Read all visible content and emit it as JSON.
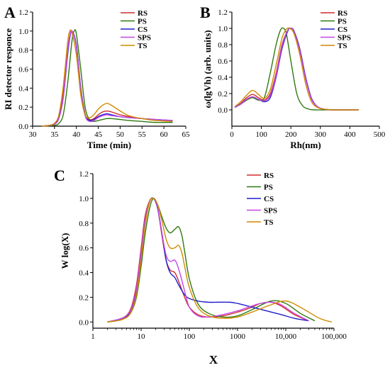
{
  "colors": {
    "RS": "#d12d2d",
    "PS": "#2f7a10",
    "CS": "#1f1fc9",
    "SPS": "#c447e6",
    "TS": "#d18a00"
  },
  "chart_data": [
    {
      "panel": "A",
      "type": "line",
      "xlabel": "Time (min)",
      "ylabel": "RI detector responce",
      "xlim": [
        30,
        65
      ],
      "ylim": [
        0.0,
        1.2
      ],
      "xticks": [
        30,
        35,
        40,
        45,
        50,
        55,
        60,
        65
      ],
      "yticks": [
        0.0,
        0.2,
        0.4,
        0.6,
        0.8,
        1.0,
        1.2
      ],
      "series": [
        {
          "name": "RS",
          "x": [
            32,
            34,
            35,
            36,
            37,
            38,
            38.5,
            39,
            40,
            41,
            42,
            43,
            44,
            45,
            46,
            47,
            48,
            50,
            52,
            55,
            58,
            62
          ],
          "y": [
            0,
            0.01,
            0.03,
            0.1,
            0.35,
            0.8,
            0.95,
            1.0,
            0.85,
            0.4,
            0.13,
            0.07,
            0.08,
            0.12,
            0.15,
            0.16,
            0.15,
            0.12,
            0.1,
            0.08,
            0.07,
            0.05
          ]
        },
        {
          "name": "PS",
          "x": [
            32,
            35,
            36,
            37,
            38,
            39,
            39.5,
            40,
            41,
            42,
            43,
            44,
            45,
            46,
            47,
            48,
            50,
            52,
            55,
            58,
            62
          ],
          "y": [
            0,
            0.01,
            0.03,
            0.12,
            0.45,
            0.9,
            1.0,
            0.97,
            0.6,
            0.2,
            0.07,
            0.05,
            0.06,
            0.07,
            0.08,
            0.08,
            0.07,
            0.06,
            0.05,
            0.04,
            0.04
          ]
        },
        {
          "name": "CS",
          "x": [
            32,
            34,
            35,
            36,
            37,
            38,
            38.5,
            39,
            40,
            41,
            42,
            43,
            44,
            45,
            46,
            47,
            48,
            50,
            52,
            55,
            58,
            62
          ],
          "y": [
            0,
            0.01,
            0.03,
            0.09,
            0.3,
            0.75,
            0.93,
            1.0,
            0.85,
            0.4,
            0.12,
            0.06,
            0.07,
            0.1,
            0.12,
            0.13,
            0.12,
            0.1,
            0.09,
            0.08,
            0.07,
            0.06
          ]
        },
        {
          "name": "SPS",
          "x": [
            32,
            34,
            35,
            36,
            37,
            38,
            38.5,
            39,
            40,
            41,
            42,
            43,
            44,
            45,
            46,
            47,
            48,
            50,
            52,
            55,
            58,
            62
          ],
          "y": [
            0,
            0.01,
            0.02,
            0.08,
            0.3,
            0.78,
            0.95,
            1.0,
            0.83,
            0.38,
            0.11,
            0.05,
            0.06,
            0.09,
            0.11,
            0.12,
            0.11,
            0.1,
            0.09,
            0.08,
            0.07,
            0.06
          ]
        },
        {
          "name": "TS",
          "x": [
            32,
            34,
            35,
            36,
            37,
            38,
            38.5,
            39,
            40,
            41,
            42,
            43,
            44,
            45,
            46,
            47,
            48,
            50,
            52,
            55,
            58,
            62
          ],
          "y": [
            0,
            0.01,
            0.03,
            0.12,
            0.42,
            0.88,
            1.0,
            0.98,
            0.75,
            0.33,
            0.12,
            0.09,
            0.12,
            0.18,
            0.22,
            0.24,
            0.22,
            0.16,
            0.11,
            0.08,
            0.06,
            0.05
          ]
        }
      ],
      "legend": [
        "RS",
        "PS",
        "CS",
        "SPS",
        "TS"
      ]
    },
    {
      "panel": "B",
      "type": "line",
      "xlabel": "Rh(nm)",
      "ylabel": "ω(lgVh) (arb. units)",
      "xlim": [
        0,
        500
      ],
      "ylim": [
        -0.2,
        1.2
      ],
      "xticks": [
        0,
        100,
        200,
        300,
        400,
        500
      ],
      "yticks": [
        0.0,
        0.2,
        0.4,
        0.6,
        0.8,
        1.0,
        1.2
      ],
      "series": [
        {
          "name": "RS",
          "x": [
            10,
            30,
            50,
            70,
            90,
            110,
            130,
            150,
            170,
            190,
            200,
            210,
            230,
            250,
            270,
            290,
            310,
            340,
            380,
            430
          ],
          "y": [
            0.03,
            0.08,
            0.15,
            0.19,
            0.15,
            0.12,
            0.2,
            0.45,
            0.8,
            0.98,
            1.0,
            0.97,
            0.75,
            0.4,
            0.14,
            0.04,
            0.01,
            0,
            0,
            0
          ]
        },
        {
          "name": "PS",
          "x": [
            10,
            30,
            50,
            70,
            90,
            110,
            130,
            150,
            165,
            175,
            185,
            200,
            220,
            240,
            260,
            280,
            310,
            350,
            400
          ],
          "y": [
            0.04,
            0.07,
            0.12,
            0.15,
            0.12,
            0.15,
            0.45,
            0.8,
            0.98,
            1.0,
            0.93,
            0.6,
            0.2,
            0.05,
            0.01,
            0,
            0,
            0,
            0
          ]
        },
        {
          "name": "CS",
          "x": [
            10,
            30,
            50,
            70,
            90,
            110,
            130,
            150,
            170,
            190,
            200,
            210,
            230,
            250,
            270,
            290,
            310,
            340,
            380,
            430
          ],
          "y": [
            0.03,
            0.07,
            0.13,
            0.16,
            0.13,
            0.1,
            0.15,
            0.4,
            0.75,
            0.97,
            1.0,
            0.97,
            0.75,
            0.4,
            0.14,
            0.04,
            0.01,
            0,
            0,
            0
          ]
        },
        {
          "name": "SPS",
          "x": [
            10,
            30,
            50,
            70,
            90,
            110,
            130,
            150,
            170,
            190,
            200,
            210,
            230,
            250,
            270,
            290,
            310,
            340,
            380,
            430
          ],
          "y": [
            0.03,
            0.07,
            0.13,
            0.16,
            0.13,
            0.11,
            0.18,
            0.42,
            0.78,
            0.98,
            1.0,
            0.96,
            0.73,
            0.38,
            0.13,
            0.04,
            0.01,
            0,
            0,
            0
          ]
        },
        {
          "name": "TS",
          "x": [
            10,
            30,
            50,
            70,
            90,
            110,
            130,
            150,
            170,
            185,
            195,
            210,
            230,
            250,
            270,
            290,
            310,
            340,
            380,
            430
          ],
          "y": [
            0.04,
            0.1,
            0.18,
            0.24,
            0.19,
            0.14,
            0.25,
            0.55,
            0.88,
            0.99,
            1.0,
            0.94,
            0.68,
            0.32,
            0.1,
            0.03,
            0.01,
            0,
            0,
            0
          ]
        }
      ],
      "legend": [
        "RS",
        "PS",
        "CS",
        "SPS",
        "TS"
      ]
    },
    {
      "panel": "C",
      "type": "line",
      "xlabel": "X",
      "ylabel": "W  log(X)",
      "xscale": "log",
      "xlim": [
        1,
        100000
      ],
      "ylim": [
        -0.05,
        1.2
      ],
      "xticks": [
        1,
        10,
        100,
        1000,
        10000,
        100000
      ],
      "xticklabels": [
        "1",
        "10",
        "100",
        "1000",
        "10,000",
        "100,000"
      ],
      "yticks": [
        0.0,
        0.2,
        0.4,
        0.6,
        0.8,
        1.0,
        1.2
      ],
      "series": [
        {
          "name": "RS",
          "x": [
            2,
            4,
            6,
            8,
            10,
            12,
            15,
            18,
            22,
            27,
            33,
            40,
            50,
            60,
            80,
            100,
            150,
            250,
            500,
            1000,
            2000,
            3000,
            5000,
            8000,
            15000,
            30000
          ],
          "y": [
            0.0,
            0.03,
            0.1,
            0.3,
            0.6,
            0.85,
            0.98,
            1.0,
            0.92,
            0.7,
            0.5,
            0.42,
            0.4,
            0.33,
            0.2,
            0.12,
            0.06,
            0.04,
            0.05,
            0.08,
            0.12,
            0.15,
            0.16,
            0.13,
            0.06,
            0.01
          ]
        },
        {
          "name": "PS",
          "x": [
            2,
            4,
            6,
            8,
            10,
            12,
            15,
            18,
            22,
            27,
            33,
            40,
            50,
            60,
            70,
            80,
            100,
            150,
            250,
            500,
            1000,
            2000,
            5000,
            10000,
            20000,
            40000
          ],
          "y": [
            0.0,
            0.02,
            0.07,
            0.2,
            0.45,
            0.7,
            0.92,
            1.0,
            0.95,
            0.85,
            0.76,
            0.72,
            0.75,
            0.77,
            0.7,
            0.57,
            0.35,
            0.15,
            0.07,
            0.04,
            0.05,
            0.1,
            0.17,
            0.15,
            0.07,
            0.01
          ]
        },
        {
          "name": "CS",
          "x": [
            2,
            4,
            6,
            8,
            10,
            12,
            15,
            18,
            22,
            27,
            33,
            40,
            50,
            60,
            80,
            100,
            150,
            250,
            400,
            700,
            1000,
            2000,
            4000,
            8000,
            15000,
            30000
          ],
          "y": [
            0.0,
            0.03,
            0.08,
            0.25,
            0.55,
            0.8,
            0.97,
            1.0,
            0.92,
            0.72,
            0.5,
            0.4,
            0.36,
            0.3,
            0.22,
            0.19,
            0.17,
            0.16,
            0.16,
            0.16,
            0.15,
            0.12,
            0.09,
            0.06,
            0.03,
            0.01
          ]
        },
        {
          "name": "SPS",
          "x": [
            2,
            4,
            6,
            8,
            10,
            12,
            15,
            18,
            22,
            27,
            33,
            40,
            50,
            60,
            80,
            100,
            150,
            250,
            500,
            1000,
            2000,
            3000,
            5000,
            8000,
            15000,
            30000
          ],
          "y": [
            0.0,
            0.03,
            0.09,
            0.27,
            0.57,
            0.82,
            0.97,
            1.0,
            0.93,
            0.72,
            0.54,
            0.49,
            0.5,
            0.43,
            0.25,
            0.12,
            0.05,
            0.04,
            0.06,
            0.09,
            0.13,
            0.15,
            0.16,
            0.14,
            0.07,
            0.01
          ]
        },
        {
          "name": "TS",
          "x": [
            2,
            4,
            6,
            8,
            10,
            12,
            15,
            18,
            22,
            27,
            33,
            40,
            50,
            60,
            70,
            80,
            100,
            150,
            250,
            500,
            1000,
            2000,
            5000,
            10000,
            20000,
            50000,
            90000
          ],
          "y": [
            0.0,
            0.02,
            0.07,
            0.22,
            0.5,
            0.77,
            0.97,
            1.0,
            0.95,
            0.82,
            0.67,
            0.6,
            0.6,
            0.62,
            0.56,
            0.45,
            0.28,
            0.12,
            0.05,
            0.03,
            0.04,
            0.08,
            0.14,
            0.17,
            0.12,
            0.03,
            0.0
          ]
        }
      ],
      "legend": [
        "RS",
        "PS",
        "CS",
        "SPS",
        "TS"
      ]
    }
  ]
}
